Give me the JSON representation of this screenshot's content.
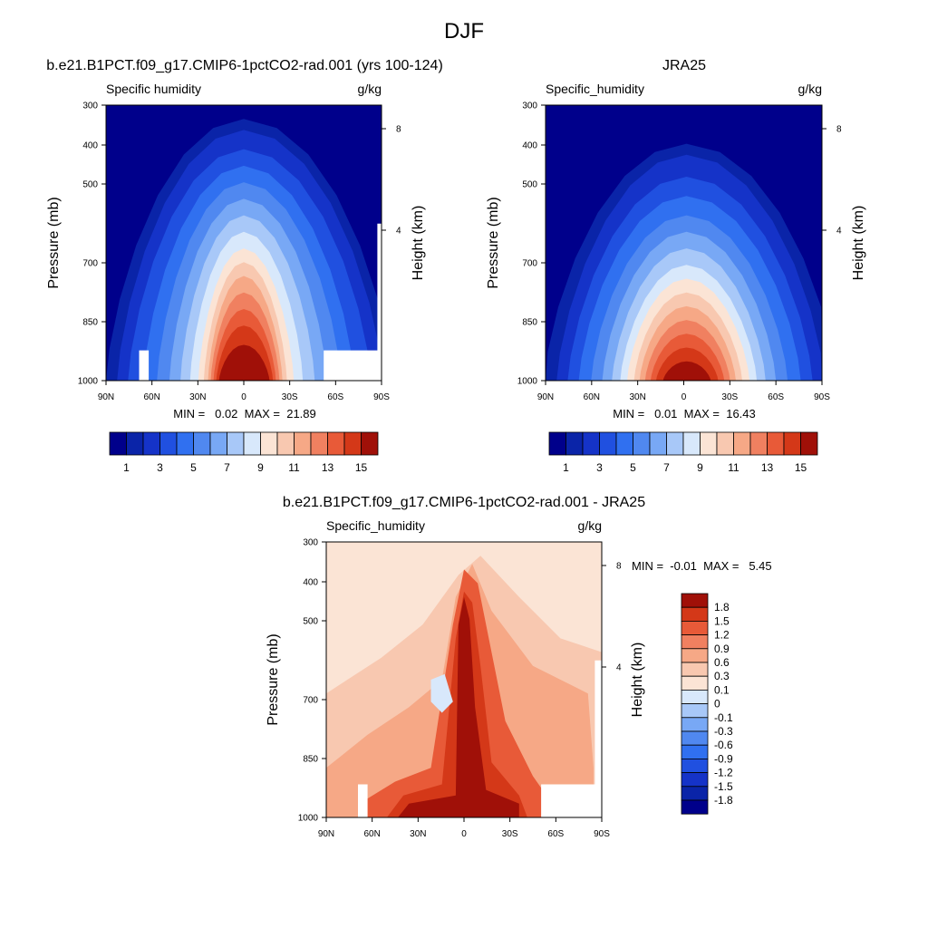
{
  "page_title": "DJF",
  "panels": [
    {
      "title": "b.e21.B1PCT.f09_g17.CMIP6-1pctCO2-rad.001 (yrs 100-124)",
      "left_label": "Specific humidity",
      "right_label": "g/kg",
      "ylabel": "Pressure (mb)",
      "y2label": "Height (km)",
      "stats": "MIN =   0.02  MAX =  21.89",
      "y_ticks": [
        "300",
        "400",
        "500",
        "700",
        "850",
        "1000"
      ],
      "y2_ticks": [
        "8",
        "4"
      ],
      "x_ticks": [
        "90N",
        "60N",
        "30N",
        "0",
        "30S",
        "60S",
        "90S"
      ],
      "colorbar_labels": [
        "1",
        "3",
        "5",
        "7",
        "9",
        "11",
        "13",
        "15"
      ]
    },
    {
      "title": "JRA25",
      "left_label": "Specific_humidity",
      "right_label": "g/kg",
      "ylabel": "Pressure (mb)",
      "y2label": "Height (km)",
      "stats": "MIN =   0.01  MAX =  16.43",
      "y_ticks": [
        "300",
        "400",
        "500",
        "700",
        "850",
        "1000"
      ],
      "y2_ticks": [
        "8",
        "4"
      ],
      "x_ticks": [
        "90N",
        "60N",
        "30N",
        "0",
        "30S",
        "60S",
        "90S"
      ],
      "colorbar_labels": [
        "1",
        "3",
        "5",
        "7",
        "9",
        "11",
        "13",
        "15"
      ]
    },
    {
      "title": "b.e21.B1PCT.f09_g17.CMIP6-1pctCO2-rad.001 - JRA25",
      "left_label": "Specific_humidity",
      "right_label": "g/kg",
      "ylabel": "Pressure (mb)",
      "y2label": "Height (km)",
      "stats": "MIN =  -0.01  MAX =   5.45",
      "y_ticks": [
        "300",
        "400",
        "500",
        "700",
        "850",
        "1000"
      ],
      "y2_ticks": [
        "8",
        "4"
      ],
      "x_ticks": [
        "90N",
        "60N",
        "30N",
        "0",
        "30S",
        "60S",
        "90S"
      ],
      "colorbar_labels": [
        "1.8",
        "1.5",
        "1.2",
        "0.9",
        "0.6",
        "0.3",
        "0.1",
        "0",
        "-0.1",
        "-0.3",
        "-0.6",
        "-0.9",
        "-1.2",
        "-1.5",
        "-1.8"
      ]
    }
  ],
  "chart_data": [
    {
      "type": "heatmap",
      "title": "b.e21.B1PCT.f09_g17.CMIP6-1pctCO2-rad.001 (yrs 100-124)",
      "variable": "Specific humidity",
      "units": "g/kg",
      "xlabel": "",
      "ylabel": "Pressure (mb)",
      "y2label": "Height (km)",
      "x_range": [
        "90N",
        "90S"
      ],
      "y_range": [
        300,
        1000
      ],
      "min": 0.02,
      "max": 21.89,
      "levels": [
        1,
        2,
        3,
        4,
        5,
        6,
        7,
        8,
        9,
        10,
        11,
        12,
        13,
        14,
        15
      ],
      "colors": [
        "#00008b",
        "#0a24a8",
        "#1533c8",
        "#2050e0",
        "#3070f0",
        "#5088f0",
        "#78a8f5",
        "#a8c8f8",
        "#d8e8fb",
        "#fbe4d5",
        "#f8c8b0",
        "#f6a886",
        "#f08060",
        "#e85a38",
        "#d43818",
        "#a01008"
      ],
      "peak_location": {
        "lat": "0",
        "pressure": 1000
      }
    },
    {
      "type": "heatmap",
      "title": "JRA25",
      "variable": "Specific_humidity",
      "units": "g/kg",
      "xlabel": "",
      "ylabel": "Pressure (mb)",
      "y2label": "Height (km)",
      "x_range": [
        "90N",
        "90S"
      ],
      "y_range": [
        300,
        1000
      ],
      "min": 0.01,
      "max": 16.43,
      "levels": [
        1,
        2,
        3,
        4,
        5,
        6,
        7,
        8,
        9,
        10,
        11,
        12,
        13,
        14,
        15
      ],
      "colors": [
        "#00008b",
        "#0a24a8",
        "#1533c8",
        "#2050e0",
        "#3070f0",
        "#5088f0",
        "#78a8f5",
        "#a8c8f8",
        "#d8e8fb",
        "#fbe4d5",
        "#f8c8b0",
        "#f6a886",
        "#f08060",
        "#e85a38",
        "#d43818",
        "#a01008"
      ],
      "peak_location": {
        "lat": "0",
        "pressure": 1000
      }
    },
    {
      "type": "heatmap",
      "title": "b.e21.B1PCT.f09_g17.CMIP6-1pctCO2-rad.001 - JRA25",
      "variable": "Specific_humidity",
      "units": "g/kg",
      "xlabel": "",
      "ylabel": "Pressure (mb)",
      "y2label": "Height (km)",
      "x_range": [
        "90N",
        "90S"
      ],
      "y_range": [
        300,
        1000
      ],
      "min": -0.01,
      "max": 5.45,
      "levels": [
        -1.8,
        -1.5,
        -1.2,
        -0.9,
        -0.6,
        -0.3,
        -0.1,
        0,
        0.1,
        0.3,
        0.6,
        0.9,
        1.2,
        1.5,
        1.8
      ],
      "colors": [
        "#00008b",
        "#0a24a8",
        "#1533c8",
        "#2050e0",
        "#3070f0",
        "#5088f0",
        "#78a8f5",
        "#a8c8f8",
        "#d8e8fb",
        "#fbe4d5",
        "#f8c8b0",
        "#f6a886",
        "#f08060",
        "#e85a38",
        "#d43818",
        "#a01008"
      ],
      "legend_position": "right"
    }
  ]
}
